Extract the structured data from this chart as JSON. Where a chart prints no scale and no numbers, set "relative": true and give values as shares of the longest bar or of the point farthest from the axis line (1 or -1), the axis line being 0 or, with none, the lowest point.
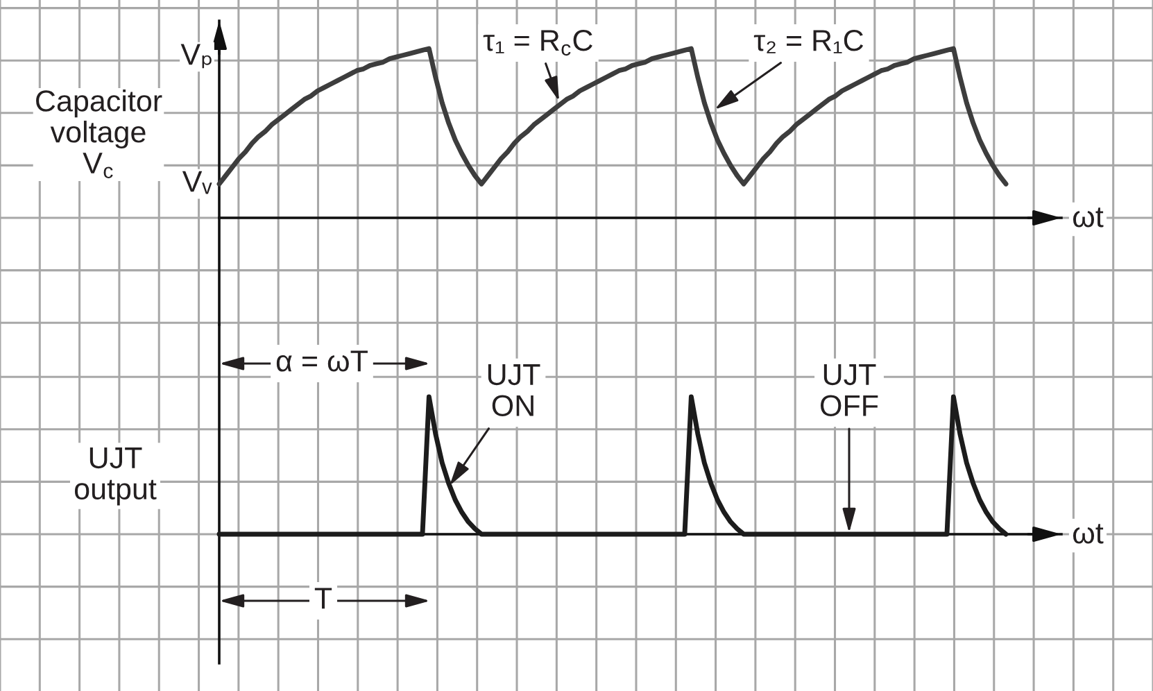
{
  "chart_data": [
    {
      "type": "line",
      "relative": true,
      "grid": true,
      "xlabel": "ωt",
      "ylabel": "Capacitor\nvoltage\nV$_{c}$",
      "categories": [
        null,
        null,
        null,
        null,
        null,
        null,
        null,
        null,
        null,
        null,
        null,
        null,
        null,
        null,
        null,
        null,
        null,
        null,
        null,
        null,
        null,
        null,
        null,
        null,
        null,
        null,
        null,
        null,
        null,
        null,
        null,
        null,
        null,
        null,
        null,
        null,
        null,
        null,
        null,
        null,
        null,
        null,
        null,
        null,
        null,
        null,
        null,
        null,
        null,
        null,
        null,
        null,
        null,
        null,
        null,
        null,
        null,
        null,
        null,
        null,
        null,
        null,
        null,
        null,
        null,
        null,
        null,
        null,
        null,
        null,
        null,
        null,
        null,
        null,
        null,
        null,
        null,
        null,
        null,
        null,
        null,
        null,
        null,
        null,
        null,
        null,
        null,
        null,
        null,
        null,
        null,
        null,
        null,
        null,
        null,
        null,
        null,
        null,
        null,
        null,
        null,
        null,
        null,
        null,
        null,
        null,
        null,
        null,
        null,
        null,
        null,
        null,
        null,
        null,
        null,
        null,
        null,
        null,
        null,
        null,
        null
      ],
      "series": [
        {
          "color": "#3d3d3d",
          "values": [
            0.2,
            0.25,
            0.3,
            0.35,
            0.39,
            0.44,
            0.48,
            0.51,
            0.55,
            0.58,
            0.61,
            0.64,
            0.67,
            0.7,
            0.72,
            0.75,
            0.77,
            0.79,
            0.81,
            0.83,
            0.85,
            0.87,
            0.88,
            0.9,
            0.91,
            0.92,
            0.94,
            0.95,
            0.96,
            0.97,
            0.98,
            0.99,
            1,
            0.83,
            0.68,
            0.56,
            0.46,
            0.38,
            0.31,
            0.25,
            0.2,
            0.25,
            0.3,
            0.35,
            0.39,
            0.44,
            0.48,
            0.51,
            0.55,
            0.58,
            0.61,
            0.64,
            0.67,
            0.7,
            0.72,
            0.75,
            0.77,
            0.79,
            0.81,
            0.83,
            0.85,
            0.87,
            0.88,
            0.9,
            0.91,
            0.92,
            0.94,
            0.95,
            0.96,
            0.97,
            0.98,
            0.99,
            1,
            0.83,
            0.68,
            0.56,
            0.46,
            0.38,
            0.31,
            0.25,
            0.2,
            0.25,
            0.3,
            0.35,
            0.39,
            0.44,
            0.48,
            0.51,
            0.55,
            0.58,
            0.61,
            0.64,
            0.67,
            0.7,
            0.72,
            0.75,
            0.77,
            0.79,
            0.81,
            0.83,
            0.85,
            0.87,
            0.88,
            0.9,
            0.91,
            0.92,
            0.94,
            0.95,
            0.96,
            0.97,
            0.98,
            0.99,
            1,
            0.83,
            0.68,
            0.56,
            0.46,
            0.38,
            0.31,
            0.25,
            0.2
          ]
        }
      ],
      "annotations": [
        "Vₚ",
        {
          "text": "Vᵥ",
          "y": 0.2
        },
        "τ₁ = R$_{c}$C",
        "τ₂ = R₁C"
      ]
    },
    {
      "type": "line",
      "relative": true,
      "grid": true,
      "xlabel": "ωt",
      "ylabel": "UJT\noutput",
      "categories": [
        null,
        null,
        null,
        null,
        null,
        null,
        null,
        null,
        null,
        null,
        null,
        null,
        null,
        null,
        null,
        null,
        null,
        null,
        null,
        null,
        null,
        null,
        null,
        null,
        null,
        null,
        null,
        null,
        null,
        null,
        null,
        null,
        null,
        null,
        null,
        null,
        null,
        null,
        null,
        null,
        null,
        null,
        null,
        null,
        null,
        null,
        null,
        null,
        null,
        null,
        null,
        null,
        null,
        null,
        null,
        null,
        null,
        null,
        null,
        null,
        null,
        null,
        null,
        null,
        null,
        null,
        null,
        null,
        null,
        null,
        null,
        null,
        null,
        null,
        null,
        null,
        null,
        null,
        null,
        null,
        null,
        null,
        null,
        null,
        null,
        null,
        null,
        null,
        null,
        null,
        null,
        null,
        null,
        null,
        null,
        null,
        null,
        null,
        null,
        null,
        null,
        null,
        null,
        null,
        null,
        null,
        null,
        null,
        null,
        null,
        null,
        null,
        null,
        null,
        null,
        null,
        null,
        null,
        null,
        null,
        null
      ],
      "series": [
        {
          "color": "#1c1c1c",
          "values": [
            0,
            0,
            0,
            0,
            0,
            0,
            0,
            0,
            0,
            0,
            0,
            0,
            0,
            0,
            0,
            0,
            0,
            0,
            0,
            0,
            0,
            0,
            0,
            0,
            0,
            0,
            0,
            0,
            0,
            0,
            0,
            0,
            1,
            0.73,
            0.52,
            0.37,
            0.25,
            0.16,
            0.09,
            0.04,
            0,
            0,
            0,
            0,
            0,
            0,
            0,
            0,
            0,
            0,
            0,
            0,
            0,
            0,
            0,
            0,
            0,
            0,
            0,
            0,
            0,
            0,
            0,
            0,
            0,
            0,
            0,
            0,
            0,
            0,
            0,
            0,
            1,
            0.73,
            0.52,
            0.37,
            0.25,
            0.16,
            0.09,
            0.04,
            0,
            0,
            0,
            0,
            0,
            0,
            0,
            0,
            0,
            0,
            0,
            0,
            0,
            0,
            0,
            0,
            0,
            0,
            0,
            0,
            0,
            0,
            0,
            0,
            0,
            0,
            0,
            0,
            0,
            0,
            0,
            0,
            1,
            0.73,
            0.52,
            0.37,
            0.25,
            0.16,
            0.09,
            0.04,
            0
          ]
        }
      ],
      "annotations": [
        "α = ωT",
        "UJT\nON",
        "UJT\nOFF",
        "T"
      ]
    }
  ]
}
